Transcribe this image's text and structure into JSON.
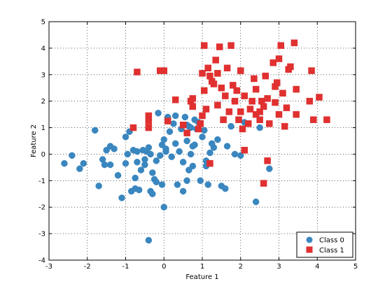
{
  "chart_data": {
    "type": "scatter",
    "xlabel": "Feature 1",
    "ylabel": "Feature 2",
    "xlim": [
      -3,
      5
    ],
    "ylim": [
      -4,
      5
    ],
    "xticks": [
      -3,
      -2,
      -1,
      0,
      1,
      2,
      3,
      4,
      5
    ],
    "yticks": [
      -4,
      -3,
      -2,
      -1,
      0,
      1,
      2,
      3,
      4,
      5
    ],
    "grid": true,
    "legend_position": "bottom-right",
    "series": [
      {
        "name": "Class 0",
        "color": "#3a86bf",
        "marker": "circle",
        "points": [
          [
            -2.6,
            -0.35
          ],
          [
            -2.4,
            -0.05
          ],
          [
            -2.2,
            -0.55
          ],
          [
            -2.1,
            -0.35
          ],
          [
            -1.8,
            0.9
          ],
          [
            -1.7,
            -1.2
          ],
          [
            -1.6,
            -0.2
          ],
          [
            -1.55,
            -0.4
          ],
          [
            -1.5,
            0.15
          ],
          [
            -1.4,
            -0.4
          ],
          [
            -1.4,
            0.3
          ],
          [
            -1.3,
            0.2
          ],
          [
            -1.2,
            -0.8
          ],
          [
            -1.1,
            -1.65
          ],
          [
            -1.0,
            -0.35
          ],
          [
            -1.0,
            0.65
          ],
          [
            -0.95,
            0.0
          ],
          [
            -0.9,
            0.85
          ],
          [
            -0.85,
            -1.4
          ],
          [
            -0.8,
            0.15
          ],
          [
            -0.75,
            -1.3
          ],
          [
            -0.75,
            -0.9
          ],
          [
            -0.7,
            -0.3
          ],
          [
            -0.7,
            0.1
          ],
          [
            -0.65,
            -1.35
          ],
          [
            -0.6,
            -0.6
          ],
          [
            -0.55,
            0.15
          ],
          [
            -0.5,
            -0.2
          ],
          [
            -0.5,
            -0.4
          ],
          [
            -0.45,
            0.1
          ],
          [
            -0.4,
            0.25
          ],
          [
            -0.4,
            1.3
          ],
          [
            -0.4,
            -3.25
          ],
          [
            -0.35,
            -1.4
          ],
          [
            -0.35,
            0.0
          ],
          [
            -0.3,
            -0.7
          ],
          [
            -0.3,
            -1.5
          ],
          [
            -0.25,
            -0.95
          ],
          [
            -0.2,
            -0.25
          ],
          [
            -0.2,
            -1.05
          ],
          [
            -0.15,
            1.55
          ],
          [
            -0.1,
            -0.05
          ],
          [
            -0.05,
            0.35
          ],
          [
            -0.05,
            -1.15
          ],
          [
            0.0,
            0.55
          ],
          [
            0.0,
            -2.0
          ],
          [
            0.05,
            0.2
          ],
          [
            0.05,
            0.1
          ],
          [
            0.1,
            1.4
          ],
          [
            0.15,
            0.85
          ],
          [
            0.2,
            -0.1
          ],
          [
            0.25,
            1.15
          ],
          [
            0.3,
            0.4
          ],
          [
            0.3,
            1.45
          ],
          [
            0.35,
            -1.15
          ],
          [
            0.4,
            0.1
          ],
          [
            0.45,
            0.95
          ],
          [
            0.5,
            -0.3
          ],
          [
            0.5,
            -1.4
          ],
          [
            0.55,
            1.4
          ],
          [
            0.6,
            -1.0
          ],
          [
            0.6,
            0.5
          ],
          [
            0.6,
            1.1
          ],
          [
            0.65,
            -0.6
          ],
          [
            0.65,
            1.05
          ],
          [
            0.7,
            1.0
          ],
          [
            0.7,
            0.0
          ],
          [
            0.75,
            -0.45
          ],
          [
            0.75,
            0.3
          ],
          [
            0.8,
            1.3
          ],
          [
            0.8,
            0.35
          ],
          [
            0.85,
            0.95
          ],
          [
            0.9,
            1.2
          ],
          [
            0.95,
            -1.0
          ],
          [
            1.0,
            0.65
          ],
          [
            1.05,
            0.9
          ],
          [
            1.1,
            -0.25
          ],
          [
            1.1,
            -0.45
          ],
          [
            1.15,
            -1.15
          ],
          [
            1.2,
            0.05
          ],
          [
            1.25,
            0.4
          ],
          [
            1.3,
            0.25
          ],
          [
            1.4,
            0.55
          ],
          [
            1.5,
            -1.2
          ],
          [
            1.6,
            -1.3
          ],
          [
            1.65,
            0.3
          ],
          [
            1.75,
            1.05
          ],
          [
            1.85,
            0.0
          ],
          [
            2.0,
            -0.05
          ],
          [
            2.1,
            1.2
          ],
          [
            2.4,
            -1.8
          ],
          [
            2.5,
            1.0
          ],
          [
            2.75,
            -0.55
          ]
        ]
      },
      {
        "name": "Class 1",
        "color": "#e03030",
        "marker": "square",
        "points": [
          [
            -0.8,
            1.0
          ],
          [
            -0.7,
            3.1
          ],
          [
            -0.4,
            1.45
          ],
          [
            -0.4,
            1.25
          ],
          [
            -0.4,
            1.0
          ],
          [
            -0.1,
            3.15
          ],
          [
            0.0,
            3.15
          ],
          [
            0.1,
            1.25
          ],
          [
            0.3,
            2.05
          ],
          [
            0.5,
            1.1
          ],
          [
            0.6,
            0.8
          ],
          [
            0.7,
            2.0
          ],
          [
            0.75,
            1.8
          ],
          [
            0.75,
            2.1
          ],
          [
            0.9,
            0.95
          ],
          [
            0.95,
            1.15
          ],
          [
            1.0,
            1.45
          ],
          [
            1.0,
            3.05
          ],
          [
            1.05,
            2.4
          ],
          [
            1.05,
            4.1
          ],
          [
            1.1,
            1.7
          ],
          [
            1.15,
            3.25
          ],
          [
            1.2,
            2.95
          ],
          [
            1.25,
            2.75
          ],
          [
            1.3,
            2.65
          ],
          [
            1.35,
            3.55
          ],
          [
            1.4,
            1.85
          ],
          [
            1.4,
            3.05
          ],
          [
            1.45,
            4.05
          ],
          [
            1.5,
            2.5
          ],
          [
            1.55,
            1.3
          ],
          [
            1.6,
            2.2
          ],
          [
            1.65,
            3.25
          ],
          [
            1.7,
            1.6
          ],
          [
            1.75,
            4.1
          ],
          [
            1.8,
            2.6
          ],
          [
            1.85,
            2.0
          ],
          [
            1.9,
            2.4
          ],
          [
            1.95,
            1.3
          ],
          [
            2.0,
            1.6
          ],
          [
            2.0,
            3.15
          ],
          [
            2.05,
            0.95
          ],
          [
            2.1,
            0.15
          ],
          [
            2.1,
            2.2
          ],
          [
            2.2,
            1.15
          ],
          [
            2.25,
            1.7
          ],
          [
            2.3,
            2.0
          ],
          [
            2.35,
            2.85
          ],
          [
            2.4,
            1.5
          ],
          [
            2.4,
            2.45
          ],
          [
            2.5,
            1.6
          ],
          [
            2.55,
            2.0
          ],
          [
            2.6,
            1.8
          ],
          [
            2.65,
            2.95
          ],
          [
            2.7,
            2.1
          ],
          [
            2.75,
            1.15
          ],
          [
            2.85,
            3.45
          ],
          [
            2.9,
            1.95
          ],
          [
            2.9,
            2.55
          ],
          [
            3.0,
            1.5
          ],
          [
            3.0,
            3.6
          ],
          [
            3.05,
            4.1
          ],
          [
            3.1,
            2.3
          ],
          [
            3.15,
            1.05
          ],
          [
            3.2,
            1.75
          ],
          [
            3.25,
            3.2
          ],
          [
            3.3,
            3.3
          ],
          [
            3.4,
            4.2
          ],
          [
            3.45,
            1.5
          ],
          [
            3.45,
            2.45
          ],
          [
            3.8,
            2.0
          ],
          [
            3.85,
            3.15
          ],
          [
            3.9,
            1.3
          ],
          [
            4.05,
            2.15
          ],
          [
            4.25,
            1.3
          ],
          [
            2.6,
            -1.1
          ],
          [
            2.7,
            -0.25
          ],
          [
            1.2,
            -0.35
          ],
          [
            2.5,
            1.3
          ],
          [
            2.95,
            2.7
          ]
        ]
      }
    ]
  },
  "colors": {
    "class0": "#3a86bf",
    "class1": "#e03030",
    "grid": "#000000",
    "axes": "#000000"
  }
}
